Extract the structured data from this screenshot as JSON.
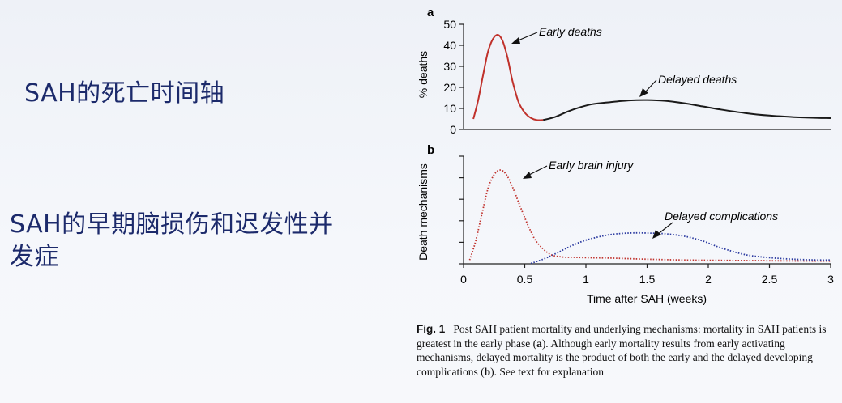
{
  "slide": {
    "heading1": "SAH的死亡时间轴",
    "heading2": "SAH的早期脑损伤和迟发性并发症"
  },
  "colors": {
    "heading": "#1c2a6b",
    "early": "#c0312b",
    "delayed": "#1a1a1a",
    "delayed_dotted": "#2b3aa0"
  },
  "chart_data": [
    {
      "panel": "a",
      "type": "line",
      "ylabel": "% deaths",
      "ylim": [
        0,
        50
      ],
      "yticks": [
        0,
        10,
        20,
        30,
        40,
        50
      ],
      "xlim": [
        0,
        3
      ],
      "series": [
        {
          "name": "Early deaths",
          "color": "#c0312b",
          "x": [
            0.08,
            0.12,
            0.16,
            0.2,
            0.24,
            0.28,
            0.32,
            0.36,
            0.4,
            0.45,
            0.5,
            0.55,
            0.6,
            0.65
          ],
          "y": [
            5,
            14,
            26,
            37,
            43,
            45,
            42,
            34,
            23,
            13,
            8,
            5.5,
            4.5,
            4.5
          ]
        },
        {
          "name": "Delayed deaths",
          "color": "#1a1a1a",
          "x": [
            0.65,
            0.75,
            0.85,
            0.95,
            1.05,
            1.2,
            1.35,
            1.5,
            1.65,
            1.8,
            1.95,
            2.1,
            2.3,
            2.5,
            2.7,
            2.9,
            3.0
          ],
          "y": [
            4.5,
            6,
            8.5,
            10.5,
            12,
            13,
            13.8,
            14,
            13.6,
            12.5,
            11,
            9.5,
            7.8,
            6.6,
            5.9,
            5.5,
            5.4
          ]
        }
      ]
    },
    {
      "panel": "b",
      "type": "line",
      "ylabel": "Death mechanisms",
      "xlabel": "Time after SAH (weeks)",
      "xlim": [
        0,
        3
      ],
      "xticks": [
        "0",
        "0.5",
        "1",
        "1.5",
        "2",
        "2.5",
        "3"
      ],
      "series": [
        {
          "name": "Early brain injury",
          "color": "#c0312b",
          "style": "dotted",
          "x": [
            0.05,
            0.1,
            0.15,
            0.2,
            0.25,
            0.3,
            0.35,
            0.4,
            0.45,
            0.5,
            0.55,
            0.6,
            0.7,
            0.8,
            0.9,
            1.0,
            1.2,
            1.5,
            1.8,
            2.1,
            2.5,
            3.0
          ],
          "y": [
            0.5,
            3,
            6.5,
            9.8,
            11.6,
            12.2,
            11.6,
            10,
            8,
            6,
            4.2,
            2.8,
            1.3,
            0.9,
            0.85,
            0.8,
            0.75,
            0.6,
            0.5,
            0.45,
            0.4,
            0.35
          ]
        },
        {
          "name": "Delayed complications",
          "color": "#2b3aa0",
          "style": "dotted",
          "x": [
            0.55,
            0.65,
            0.75,
            0.85,
            0.95,
            1.05,
            1.2,
            1.35,
            1.5,
            1.65,
            1.8,
            1.95,
            2.1,
            2.3,
            2.5,
            2.7,
            2.9,
            3.0
          ],
          "y": [
            0.05,
            0.6,
            1.3,
            2.1,
            2.8,
            3.3,
            3.8,
            4.0,
            4.0,
            3.9,
            3.6,
            3.0,
            2.1,
            1.2,
            0.8,
            0.6,
            0.5,
            0.5
          ]
        }
      ]
    }
  ],
  "caption": {
    "fig_label": "Fig. 1",
    "text_1": "Post SAH patient mortality and underlying mechanisms: mortality in SAH patients is greatest in the early phase (",
    "bold_a": "a",
    "text_2": "). Although early mortality results from early activating mechanisms, delayed mortality is the product of both the early and the delayed developing complications (",
    "bold_b": "b",
    "text_3": "). See text for explanation"
  }
}
